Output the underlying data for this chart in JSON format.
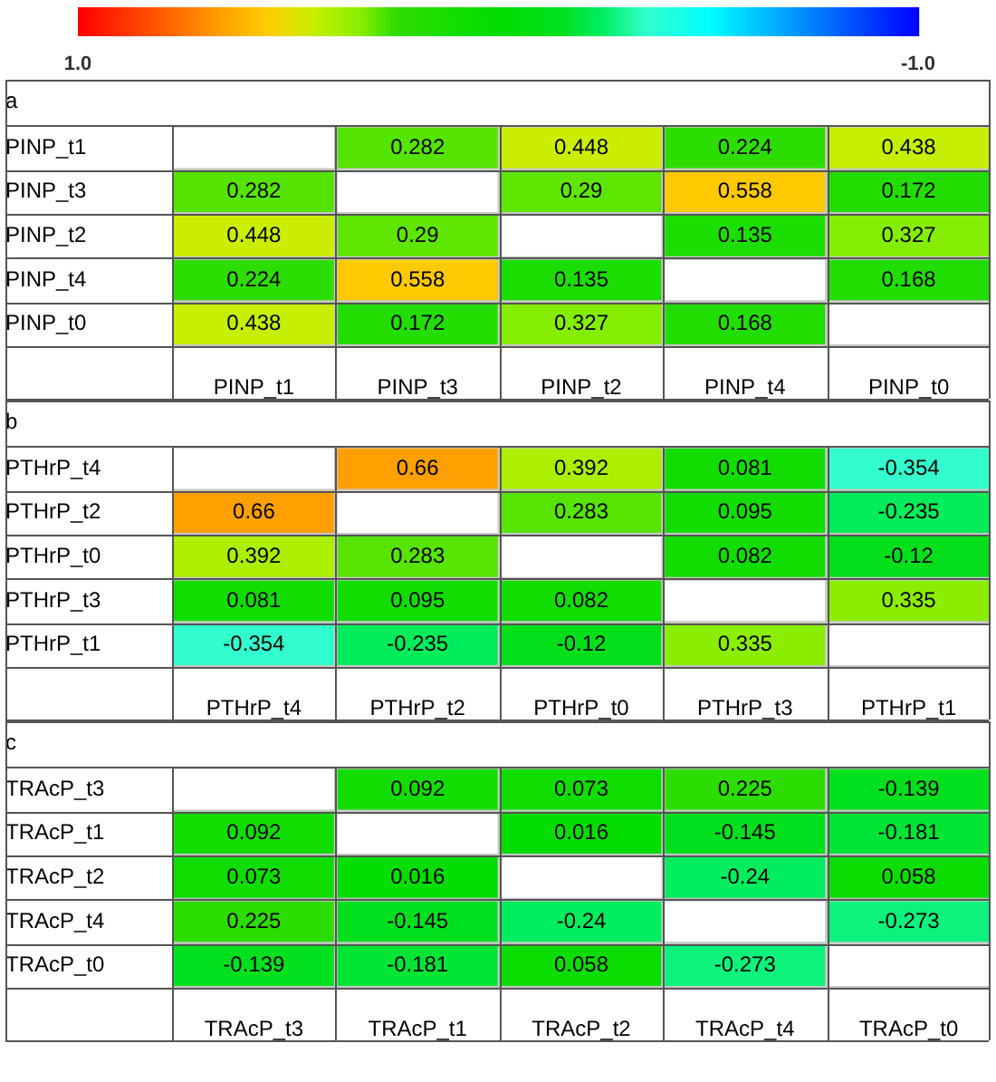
{
  "chart_data": [
    {
      "type": "heatmap",
      "title": "a",
      "clim": [
        1,
        -1
      ],
      "cticks": [
        {
          "value": 1,
          "label": "1.0"
        },
        {
          "value": -1,
          "label": "-1.0"
        }
      ],
      "grid": true,
      "data_labels": true,
      "categories": [
        "PINP_t1",
        "PINP_t3",
        "PINP_t2",
        "PINP_t4",
        "PINP_t0"
      ],
      "y_categories": [
        "PINP_t1",
        "PINP_t3",
        "PINP_t2",
        "PINP_t4",
        "PINP_t0"
      ],
      "cells": [
        [
          null,
          0.282,
          0.448,
          0.224,
          0.438
        ],
        [
          0.282,
          null,
          0.29,
          0.558,
          0.172
        ],
        [
          0.448,
          0.29,
          null,
          0.135,
          0.327
        ],
        [
          0.224,
          0.558,
          0.135,
          null,
          0.168
        ],
        [
          0.438,
          0.172,
          0.327,
          0.168,
          null
        ]
      ]
    },
    {
      "type": "heatmap",
      "title": "b",
      "grid": true,
      "data_labels": true,
      "categories": [
        "PTHrP_t4",
        "PTHrP_t2",
        "PTHrP_t0",
        "PTHrP_t3",
        "PTHrP_t1"
      ],
      "y_categories": [
        "PTHrP_t4",
        "PTHrP_t2",
        "PTHrP_t0",
        "PTHrP_t3",
        "PTHrP_t1"
      ],
      "cells": [
        [
          null,
          0.66,
          0.392,
          0.081,
          -0.354
        ],
        [
          0.66,
          null,
          0.283,
          0.095,
          -0.235
        ],
        [
          0.392,
          0.283,
          null,
          0.082,
          -0.12
        ],
        [
          0.081,
          0.095,
          0.082,
          null,
          0.335
        ],
        [
          -0.354,
          -0.235,
          -0.12,
          0.335,
          null
        ]
      ]
    },
    {
      "type": "heatmap",
      "title": "c",
      "grid": true,
      "data_labels": true,
      "categories": [
        "TRAcP_t3",
        "TRAcP_t1",
        "TRAcP_t2",
        "TRAcP_t4",
        "TRAcP_t0"
      ],
      "y_categories": [
        "TRAcP_t3",
        "TRAcP_t1",
        "TRAcP_t2",
        "TRAcP_t4",
        "TRAcP_t0"
      ],
      "cells": [
        [
          null,
          0.092,
          0.073,
          0.225,
          -0.139
        ],
        [
          0.092,
          null,
          0.016,
          -0.145,
          -0.181
        ],
        [
          0.073,
          0.016,
          null,
          -0.24,
          0.058
        ],
        [
          0.225,
          -0.145,
          -0.24,
          null,
          -0.273
        ],
        [
          -0.139,
          -0.181,
          0.058,
          -0.273,
          null
        ]
      ]
    }
  ]
}
